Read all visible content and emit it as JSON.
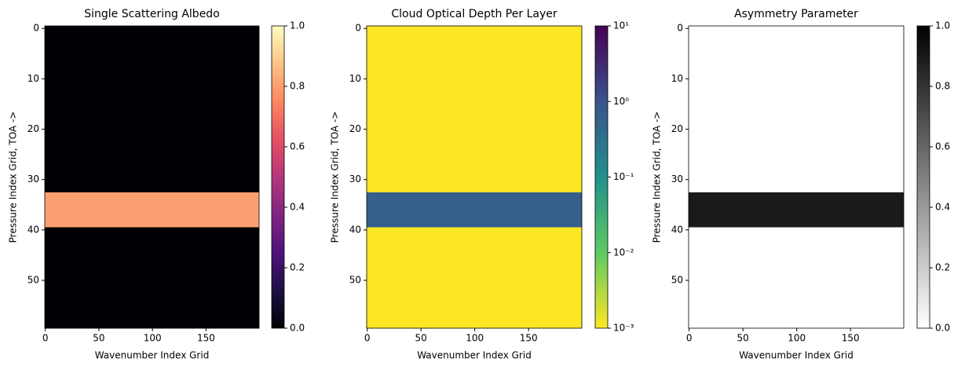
{
  "chart_data": [
    {
      "type": "heatmap",
      "title": "Single Scattering Albedo",
      "xlabel": "Wavenumber Index Grid",
      "ylabel": "Pressure Index Grid, TOA ->",
      "xlim": [
        -0.5,
        199.5
      ],
      "ylim": [
        59.5,
        -0.5
      ],
      "xticks": [
        0,
        50,
        100,
        150
      ],
      "yticks": [
        0,
        10,
        20,
        30,
        40,
        50
      ],
      "values": [
        0,
        0,
        0,
        0,
        0,
        0,
        0,
        0,
        0,
        0,
        0,
        0,
        0,
        0,
        0,
        0,
        0,
        0,
        0,
        0,
        0,
        0,
        0,
        0,
        0,
        0,
        0,
        0,
        0,
        0,
        0,
        0,
        0,
        0.8,
        0.8,
        0.8,
        0.8,
        0.8,
        0.8,
        0.8,
        0,
        0,
        0,
        0,
        0,
        0,
        0,
        0,
        0,
        0,
        0,
        0,
        0,
        0,
        0,
        0,
        0,
        0,
        0,
        0
      ],
      "colormap": "magma",
      "clim": [
        0,
        1
      ],
      "log_color": false,
      "cticks": [
        {
          "value": 0,
          "label": "0.0"
        },
        {
          "value": 0.2,
          "label": "0.2"
        },
        {
          "value": 0.4,
          "label": "0.4"
        },
        {
          "value": 0.6,
          "label": "0.6"
        },
        {
          "value": 0.8,
          "label": "0.8"
        },
        {
          "value": 1,
          "label": "1.0"
        }
      ]
    },
    {
      "type": "heatmap",
      "title": "Cloud Optical Depth Per Layer",
      "xlabel": "Wavenumber Index Grid",
      "ylabel": "Pressure Index Grid, TOA ->",
      "xlim": [
        -0.5,
        199.5
      ],
      "ylim": [
        59.5,
        -0.5
      ],
      "xticks": [
        0,
        50,
        100,
        150
      ],
      "yticks": [
        0,
        10,
        20,
        30,
        40,
        50
      ],
      "values": [
        0.001,
        0.001,
        0.001,
        0.001,
        0.001,
        0.001,
        0.001,
        0.001,
        0.001,
        0.001,
        0.001,
        0.001,
        0.001,
        0.001,
        0.001,
        0.001,
        0.001,
        0.001,
        0.001,
        0.001,
        0.001,
        0.001,
        0.001,
        0.001,
        0.001,
        0.001,
        0.001,
        0.001,
        0.001,
        0.001,
        0.001,
        0.001,
        0.001,
        0.6,
        0.6,
        0.6,
        0.6,
        0.6,
        0.6,
        0.6,
        0.001,
        0.001,
        0.001,
        0.001,
        0.001,
        0.001,
        0.001,
        0.001,
        0.001,
        0.001,
        0.001,
        0.001,
        0.001,
        0.001,
        0.001,
        0.001,
        0.001,
        0.001,
        0.001,
        0.001
      ],
      "colormap": "viridis_r",
      "clim": [
        0.001,
        10
      ],
      "log_color": true,
      "cticks": [
        {
          "value": 0.001,
          "label": "10⁻³"
        },
        {
          "value": 0.01,
          "label": "10⁻²"
        },
        {
          "value": 0.1,
          "label": "10⁻¹"
        },
        {
          "value": 1,
          "label": "10⁰"
        },
        {
          "value": 10,
          "label": "10¹"
        }
      ]
    },
    {
      "type": "heatmap",
      "title": "Asymmetry Parameter",
      "xlabel": "Wavenumber Index Grid",
      "ylabel": "Pressure Index Grid, TOA ->",
      "xlim": [
        -0.5,
        199.5
      ],
      "ylim": [
        59.5,
        -0.5
      ],
      "xticks": [
        0,
        50,
        100,
        150
      ],
      "yticks": [
        0,
        10,
        20,
        30,
        40,
        50
      ],
      "values": [
        0,
        0,
        0,
        0,
        0,
        0,
        0,
        0,
        0,
        0,
        0,
        0,
        0,
        0,
        0,
        0,
        0,
        0,
        0,
        0,
        0,
        0,
        0,
        0,
        0,
        0,
        0,
        0,
        0,
        0,
        0,
        0,
        0,
        0.9,
        0.9,
        0.9,
        0.9,
        0.9,
        0.9,
        0.9,
        0,
        0,
        0,
        0,
        0,
        0,
        0,
        0,
        0,
        0,
        0,
        0,
        0,
        0,
        0,
        0,
        0,
        0,
        0,
        0
      ],
      "colormap": "gray_r",
      "clim": [
        0,
        1
      ],
      "log_color": false,
      "cticks": [
        {
          "value": 0,
          "label": "0.0"
        },
        {
          "value": 0.2,
          "label": "0.2"
        },
        {
          "value": 0.4,
          "label": "0.4"
        },
        {
          "value": 0.6,
          "label": "0.6"
        },
        {
          "value": 0.8,
          "label": "0.8"
        },
        {
          "value": 1,
          "label": "1.0"
        }
      ]
    }
  ]
}
